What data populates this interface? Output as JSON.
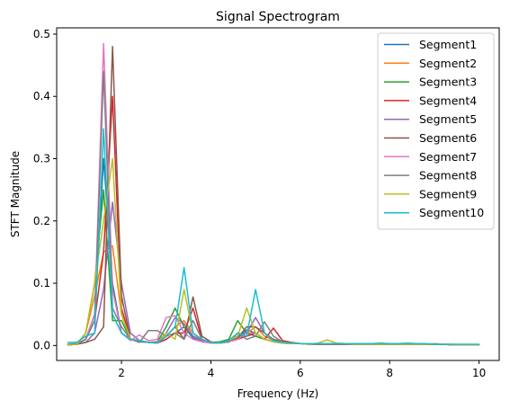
{
  "chart_data": {
    "type": "line",
    "title": "Signal Spectrogram",
    "xlabel": "Frequency (Hz)",
    "ylabel": "STFT Magnitude",
    "xlim": [
      0.55,
      10.45
    ],
    "ylim": [
      -0.024,
      0.51
    ],
    "xticks": [
      2,
      4,
      6,
      8,
      10
    ],
    "xtick_labels": [
      "2",
      "4",
      "6",
      "8",
      "10"
    ],
    "yticks": [
      0.0,
      0.1,
      0.2,
      0.3,
      0.4,
      0.5
    ],
    "ytick_labels": [
      "0.0",
      "0.1",
      "0.2",
      "0.3",
      "0.4",
      "0.5"
    ],
    "grid": false,
    "legend_position": "top-right",
    "x": [
      0.8,
      1.0,
      1.2,
      1.4,
      1.6,
      1.8,
      2.0,
      2.2,
      2.4,
      2.6,
      2.8,
      3.0,
      3.2,
      3.4,
      3.6,
      3.8,
      4.0,
      4.2,
      4.4,
      4.6,
      4.8,
      5.0,
      5.2,
      5.4,
      5.6,
      5.8,
      6.0,
      6.2,
      6.4,
      6.6,
      6.8,
      7.0,
      7.2,
      7.4,
      7.6,
      7.8,
      8.0,
      8.2,
      8.4,
      8.6,
      8.8,
      9.0,
      9.2,
      9.4,
      9.6,
      9.8,
      10.0
    ],
    "series": [
      {
        "name": "Segment1",
        "color": "#1f77b4",
        "values": [
          0.002,
          0.003,
          0.01,
          0.05,
          0.3,
          0.1,
          0.02,
          0.01,
          0.006,
          0.005,
          0.004,
          0.01,
          0.02,
          0.03,
          0.012,
          0.006,
          0.004,
          0.004,
          0.006,
          0.012,
          0.025,
          0.02,
          0.01,
          0.006,
          0.004,
          0.003,
          0.003,
          0.002,
          0.002,
          0.002,
          0.002,
          0.002,
          0.002,
          0.002,
          0.002,
          0.002,
          0.002,
          0.002,
          0.002,
          0.002,
          0.002,
          0.002,
          0.002,
          0.001,
          0.001,
          0.001,
          0.001
        ]
      },
      {
        "name": "Segment2",
        "color": "#ff7f0e",
        "values": [
          0.001,
          0.002,
          0.02,
          0.08,
          0.15,
          0.16,
          0.05,
          0.01,
          0.008,
          0.005,
          0.004,
          0.015,
          0.03,
          0.04,
          0.02,
          0.008,
          0.005,
          0.004,
          0.008,
          0.015,
          0.02,
          0.03,
          0.015,
          0.008,
          0.005,
          0.004,
          0.003,
          0.003,
          0.002,
          0.002,
          0.002,
          0.002,
          0.002,
          0.002,
          0.002,
          0.002,
          0.002,
          0.002,
          0.002,
          0.002,
          0.002,
          0.003,
          0.002,
          0.002,
          0.001,
          0.001,
          0.001
        ]
      },
      {
        "name": "Segment3",
        "color": "#2ca02c",
        "values": [
          0.001,
          0.002,
          0.02,
          0.1,
          0.25,
          0.04,
          0.04,
          0.01,
          0.008,
          0.005,
          0.006,
          0.03,
          0.06,
          0.03,
          0.015,
          0.008,
          0.005,
          0.006,
          0.01,
          0.04,
          0.02,
          0.015,
          0.01,
          0.006,
          0.004,
          0.003,
          0.003,
          0.002,
          0.002,
          0.002,
          0.002,
          0.002,
          0.002,
          0.002,
          0.002,
          0.002,
          0.002,
          0.002,
          0.002,
          0.002,
          0.002,
          0.002,
          0.002,
          0.001,
          0.001,
          0.001,
          0.001
        ]
      },
      {
        "name": "Segment4",
        "color": "#d62728",
        "values": [
          0.001,
          0.002,
          0.01,
          0.04,
          0.15,
          0.4,
          0.06,
          0.01,
          0.008,
          0.005,
          0.004,
          0.01,
          0.02,
          0.02,
          0.06,
          0.01,
          0.005,
          0.004,
          0.006,
          0.01,
          0.015,
          0.02,
          0.01,
          0.028,
          0.008,
          0.005,
          0.003,
          0.003,
          0.002,
          0.002,
          0.002,
          0.002,
          0.002,
          0.002,
          0.002,
          0.002,
          0.002,
          0.002,
          0.002,
          0.002,
          0.002,
          0.002,
          0.002,
          0.001,
          0.001,
          0.001,
          0.001
        ]
      },
      {
        "name": "Segment5",
        "color": "#9467bd",
        "values": [
          0.001,
          0.002,
          0.005,
          0.02,
          0.09,
          0.23,
          0.1,
          0.02,
          0.008,
          0.005,
          0.006,
          0.02,
          0.045,
          0.035,
          0.015,
          0.008,
          0.005,
          0.004,
          0.008,
          0.015,
          0.02,
          0.045,
          0.02,
          0.008,
          0.005,
          0.003,
          0.003,
          0.002,
          0.002,
          0.002,
          0.002,
          0.002,
          0.002,
          0.002,
          0.002,
          0.002,
          0.002,
          0.002,
          0.002,
          0.002,
          0.002,
          0.002,
          0.002,
          0.001,
          0.001,
          0.001,
          0.001
        ]
      },
      {
        "name": "Segment6",
        "color": "#8c564b",
        "values": [
          0.001,
          0.002,
          0.005,
          0.01,
          0.03,
          0.48,
          0.08,
          0.01,
          0.008,
          0.005,
          0.004,
          0.015,
          0.03,
          0.01,
          0.078,
          0.015,
          0.006,
          0.004,
          0.006,
          0.012,
          0.03,
          0.03,
          0.02,
          0.01,
          0.006,
          0.004,
          0.003,
          0.003,
          0.002,
          0.002,
          0.002,
          0.002,
          0.002,
          0.002,
          0.002,
          0.002,
          0.002,
          0.002,
          0.002,
          0.002,
          0.002,
          0.002,
          0.002,
          0.001,
          0.001,
          0.001,
          0.001
        ]
      },
      {
        "name": "Segment7",
        "color": "#e377c2",
        "values": [
          0.001,
          0.002,
          0.01,
          0.05,
          0.485,
          0.09,
          0.02,
          0.008,
          0.017,
          0.008,
          0.01,
          0.045,
          0.048,
          0.02,
          0.01,
          0.006,
          0.004,
          0.004,
          0.006,
          0.01,
          0.02,
          0.02,
          0.01,
          0.006,
          0.004,
          0.003,
          0.003,
          0.002,
          0.002,
          0.002,
          0.002,
          0.002,
          0.002,
          0.002,
          0.002,
          0.002,
          0.002,
          0.002,
          0.002,
          0.002,
          0.002,
          0.002,
          0.002,
          0.001,
          0.001,
          0.001,
          0.001
        ]
      },
      {
        "name": "Segment8",
        "color": "#7f7f7f",
        "values": [
          0.001,
          0.002,
          0.01,
          0.04,
          0.44,
          0.06,
          0.03,
          0.01,
          0.005,
          0.024,
          0.024,
          0.015,
          0.02,
          0.01,
          0.04,
          0.01,
          0.005,
          0.004,
          0.006,
          0.02,
          0.01,
          0.015,
          0.038,
          0.015,
          0.006,
          0.004,
          0.003,
          0.003,
          0.002,
          0.002,
          0.002,
          0.002,
          0.002,
          0.002,
          0.002,
          0.002,
          0.002,
          0.002,
          0.002,
          0.002,
          0.002,
          0.002,
          0.002,
          0.001,
          0.001,
          0.001,
          0.001
        ]
      },
      {
        "name": "Segment9",
        "color": "#bcbd22",
        "values": [
          0.001,
          0.002,
          0.02,
          0.1,
          0.2,
          0.3,
          0.05,
          0.01,
          0.008,
          0.005,
          0.004,
          0.02,
          0.01,
          0.09,
          0.02,
          0.01,
          0.005,
          0.004,
          0.008,
          0.015,
          0.06,
          0.02,
          0.01,
          0.006,
          0.004,
          0.003,
          0.003,
          0.002,
          0.004,
          0.009,
          0.004,
          0.003,
          0.002,
          0.002,
          0.002,
          0.002,
          0.002,
          0.002,
          0.002,
          0.002,
          0.002,
          0.002,
          0.002,
          0.001,
          0.001,
          0.001,
          0.001
        ]
      },
      {
        "name": "Segment10",
        "color": "#17becf",
        "values": [
          0.005,
          0.005,
          0.015,
          0.02,
          0.348,
          0.05,
          0.02,
          0.01,
          0.008,
          0.005,
          0.004,
          0.015,
          0.03,
          0.125,
          0.02,
          0.01,
          0.005,
          0.004,
          0.008,
          0.02,
          0.015,
          0.09,
          0.02,
          0.008,
          0.005,
          0.004,
          0.003,
          0.003,
          0.003,
          0.003,
          0.003,
          0.003,
          0.003,
          0.003,
          0.003,
          0.004,
          0.003,
          0.003,
          0.004,
          0.003,
          0.003,
          0.002,
          0.002,
          0.002,
          0.002,
          0.002,
          0.002
        ]
      }
    ]
  }
}
